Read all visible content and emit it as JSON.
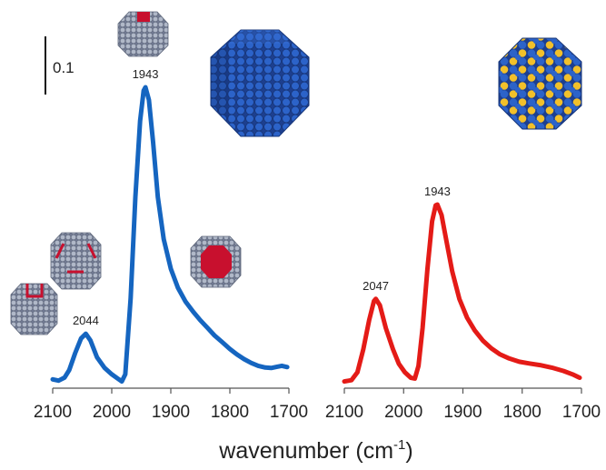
{
  "colors": {
    "blue_series": "#1565c0",
    "red_series": "#e41b17",
    "atom_blue": "#2456b8",
    "atom_gold": "#f2c02a",
    "atom_gray": "#9aa3b5",
    "site_red": "#c8102e"
  },
  "scale_bar": {
    "label": "0.1"
  },
  "x_axis": {
    "title_main": "wavenumber (cm",
    "title_sup": "-1",
    "title_close": ")"
  },
  "icons": [
    "cuboctahedron-blue-icon",
    "cuboctahedron-alloy-icon",
    "site-model-icon"
  ],
  "chart_data": [
    {
      "type": "line",
      "title": "",
      "xlabel": "wavenumber (cm-1)",
      "ylabel": "",
      "xlim": [
        2100,
        1700
      ],
      "x_reversed": true,
      "x_ticks": [
        2100,
        2000,
        1900,
        1800,
        1700
      ],
      "x_tick_labels": [
        "2100",
        "2000",
        "1900",
        "1800",
        "1700"
      ],
      "color": "#1565c0",
      "series": [
        {
          "points": [
            [
              2100,
              0.008
            ],
            [
              2090,
              0.005
            ],
            [
              2080,
              0.012
            ],
            [
              2072,
              0.03
            ],
            [
              2062,
              0.07
            ],
            [
              2052,
              0.105
            ],
            [
              2044,
              0.116
            ],
            [
              2036,
              0.1
            ],
            [
              2025,
              0.06
            ],
            [
              2012,
              0.035
            ],
            [
              2000,
              0.02
            ],
            [
              1990,
              0.01
            ],
            [
              1983,
              0.003
            ],
            [
              1977,
              0.02
            ],
            [
              1968,
              0.2
            ],
            [
              1960,
              0.44
            ],
            [
              1952,
              0.62
            ],
            [
              1946,
              0.692
            ],
            [
              1943,
              0.7
            ],
            [
              1937,
              0.67
            ],
            [
              1930,
              0.57
            ],
            [
              1922,
              0.44
            ],
            [
              1912,
              0.34
            ],
            [
              1900,
              0.27
            ],
            [
              1888,
              0.225
            ],
            [
              1875,
              0.192
            ],
            [
              1862,
              0.168
            ],
            [
              1850,
              0.148
            ],
            [
              1838,
              0.13
            ],
            [
              1826,
              0.112
            ],
            [
              1812,
              0.095
            ],
            [
              1800,
              0.08
            ],
            [
              1788,
              0.067
            ],
            [
              1776,
              0.056
            ],
            [
              1764,
              0.047
            ],
            [
              1752,
              0.04
            ],
            [
              1740,
              0.036
            ],
            [
              1730,
              0.035
            ],
            [
              1720,
              0.038
            ],
            [
              1712,
              0.04
            ],
            [
              1703,
              0.037
            ]
          ]
        }
      ],
      "annotations": [
        {
          "text": "2044",
          "x": 2044,
          "y": 0.116
        },
        {
          "text": "1943",
          "x": 1943,
          "y": 0.7
        }
      ]
    },
    {
      "type": "line",
      "title": "",
      "xlabel": "wavenumber (cm-1)",
      "ylabel": "",
      "xlim": [
        2100,
        1700
      ],
      "x_reversed": true,
      "x_ticks": [
        2100,
        2000,
        1900,
        1800,
        1700
      ],
      "x_tick_labels": [
        "2100",
        "2000",
        "1900",
        "1800",
        "1700"
      ],
      "color": "#e41b17",
      "series": [
        {
          "points": [
            [
              2100,
              0.003
            ],
            [
              2088,
              0.006
            ],
            [
              2078,
              0.025
            ],
            [
              2068,
              0.08
            ],
            [
              2058,
              0.15
            ],
            [
              2050,
              0.195
            ],
            [
              2047,
              0.2
            ],
            [
              2040,
              0.185
            ],
            [
              2030,
              0.13
            ],
            [
              2018,
              0.08
            ],
            [
              2008,
              0.045
            ],
            [
              1998,
              0.025
            ],
            [
              1988,
              0.012
            ],
            [
              1981,
              0.01
            ],
            [
              1975,
              0.04
            ],
            [
              1968,
              0.13
            ],
            [
              1960,
              0.27
            ],
            [
              1952,
              0.385
            ],
            [
              1946,
              0.423
            ],
            [
              1943,
              0.425
            ],
            [
              1936,
              0.4
            ],
            [
              1928,
              0.34
            ],
            [
              1918,
              0.265
            ],
            [
              1906,
              0.2
            ],
            [
              1893,
              0.155
            ],
            [
              1880,
              0.125
            ],
            [
              1866,
              0.1
            ],
            [
              1852,
              0.082
            ],
            [
              1838,
              0.068
            ],
            [
              1822,
              0.058
            ],
            [
              1805,
              0.05
            ],
            [
              1788,
              0.046
            ],
            [
              1770,
              0.042
            ],
            [
              1750,
              0.036
            ],
            [
              1730,
              0.028
            ],
            [
              1715,
              0.02
            ],
            [
              1703,
              0.012
            ]
          ]
        }
      ],
      "annotations": [
        {
          "text": "2047",
          "x": 2047,
          "y": 0.2
        },
        {
          "text": "1943",
          "x": 1943,
          "y": 0.425
        }
      ]
    }
  ]
}
